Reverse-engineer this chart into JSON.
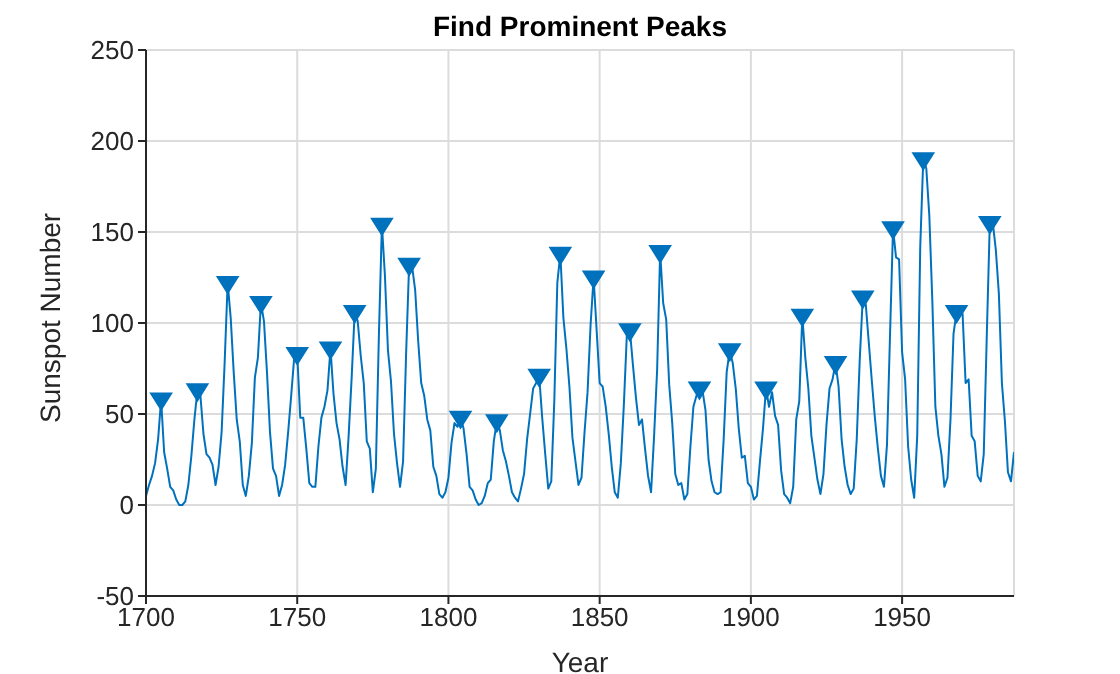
{
  "chart_data": {
    "type": "line",
    "title": "Find Prominent Peaks",
    "xlabel": "Year",
    "ylabel": "Sunspot Number",
    "x": [
      1700,
      1701,
      1702,
      1703,
      1704,
      1705,
      1706,
      1707,
      1708,
      1709,
      1710,
      1711,
      1712,
      1713,
      1714,
      1715,
      1716,
      1717,
      1718,
      1719,
      1720,
      1721,
      1722,
      1723,
      1724,
      1725,
      1726,
      1727,
      1728,
      1729,
      1730,
      1731,
      1732,
      1733,
      1734,
      1735,
      1736,
      1737,
      1738,
      1739,
      1740,
      1741,
      1742,
      1743,
      1744,
      1745,
      1746,
      1747,
      1748,
      1749,
      1750,
      1751,
      1752,
      1753,
      1754,
      1755,
      1756,
      1757,
      1758,
      1759,
      1760,
      1761,
      1762,
      1763,
      1764,
      1765,
      1766,
      1767,
      1768,
      1769,
      1770,
      1771,
      1772,
      1773,
      1774,
      1775,
      1776,
      1777,
      1778,
      1779,
      1780,
      1781,
      1782,
      1783,
      1784,
      1785,
      1786,
      1787,
      1788,
      1789,
      1790,
      1791,
      1792,
      1793,
      1794,
      1795,
      1796,
      1797,
      1798,
      1799,
      1800,
      1801,
      1802,
      1803,
      1804,
      1805,
      1806,
      1807,
      1808,
      1809,
      1810,
      1811,
      1812,
      1813,
      1814,
      1815,
      1816,
      1817,
      1818,
      1819,
      1820,
      1821,
      1822,
      1823,
      1824,
      1825,
      1826,
      1827,
      1828,
      1829,
      1830,
      1831,
      1832,
      1833,
      1834,
      1835,
      1836,
      1837,
      1838,
      1839,
      1840,
      1841,
      1842,
      1843,
      1844,
      1845,
      1846,
      1847,
      1848,
      1849,
      1850,
      1851,
      1852,
      1853,
      1854,
      1855,
      1856,
      1857,
      1858,
      1859,
      1860,
      1861,
      1862,
      1863,
      1864,
      1865,
      1866,
      1867,
      1868,
      1869,
      1870,
      1871,
      1872,
      1873,
      1874,
      1875,
      1876,
      1877,
      1878,
      1879,
      1880,
      1881,
      1882,
      1883,
      1884,
      1885,
      1886,
      1887,
      1888,
      1889,
      1890,
      1891,
      1892,
      1893,
      1894,
      1895,
      1896,
      1897,
      1898,
      1899,
      1900,
      1901,
      1902,
      1903,
      1904,
      1905,
      1906,
      1907,
      1908,
      1909,
      1910,
      1911,
      1912,
      1913,
      1914,
      1915,
      1916,
      1917,
      1918,
      1919,
      1920,
      1921,
      1922,
      1923,
      1924,
      1925,
      1926,
      1927,
      1928,
      1929,
      1930,
      1931,
      1932,
      1933,
      1934,
      1935,
      1936,
      1937,
      1938,
      1939,
      1940,
      1941,
      1942,
      1943,
      1944,
      1945,
      1946,
      1947,
      1948,
      1949,
      1950,
      1951,
      1952,
      1953,
      1954,
      1955,
      1956,
      1957,
      1958,
      1959,
      1960,
      1961,
      1962,
      1963,
      1964,
      1965,
      1966,
      1967,
      1968,
      1969,
      1970,
      1971,
      1972,
      1973,
      1974,
      1975,
      1976,
      1977,
      1978,
      1979,
      1980,
      1981,
      1982,
      1983,
      1984,
      1985,
      1986,
      1987
    ],
    "series": [
      {
        "color": "#0072bd",
        "values": [
          5,
          11,
          16,
          23,
          36,
          58,
          29,
          20,
          10,
          8,
          3,
          0,
          0,
          2,
          11,
          27,
          47,
          63,
          60,
          39,
          28,
          26,
          22,
          11,
          21,
          40,
          78,
          122,
          103,
          73,
          47,
          35,
          11,
          5,
          16,
          34,
          70,
          81,
          111,
          101,
          73,
          40,
          20,
          16,
          5,
          11,
          22,
          40,
          60,
          81,
          83,
          48,
          48,
          31,
          12,
          10,
          10,
          32,
          48,
          54,
          63,
          86,
          61,
          45,
          36,
          21,
          11,
          38,
          70,
          106,
          101,
          82,
          67,
          35,
          31,
          7,
          20,
          93,
          154,
          126,
          85,
          68,
          39,
          23,
          10,
          24,
          83,
          132,
          131,
          118,
          90,
          67,
          60,
          47,
          41,
          21,
          16,
          6,
          4,
          7,
          15,
          34,
          45,
          43,
          48,
          42,
          28,
          10,
          8,
          3,
          0,
          1,
          5,
          12,
          14,
          35,
          46,
          41,
          30,
          24,
          16,
          7,
          4,
          2,
          9,
          17,
          36,
          50,
          64,
          67,
          71,
          48,
          28,
          9,
          13,
          57,
          122,
          138,
          103,
          86,
          65,
          37,
          24,
          11,
          15,
          40,
          62,
          99,
          125,
          96,
          67,
          65,
          54,
          39,
          21,
          7,
          4,
          23,
          55,
          94,
          96,
          77,
          59,
          44,
          47,
          31,
          16,
          7,
          38,
          74,
          139,
          111,
          102,
          66,
          45,
          17,
          11,
          12,
          3,
          6,
          32,
          54,
          60,
          64,
          63,
          52,
          25,
          13,
          7,
          6,
          7,
          36,
          73,
          85,
          78,
          64,
          42,
          26,
          27,
          12,
          10,
          3,
          5,
          24,
          42,
          64,
          54,
          62,
          49,
          44,
          19,
          6,
          4,
          1,
          10,
          47,
          57,
          104,
          81,
          64,
          38,
          26,
          14,
          6,
          17,
          44,
          64,
          69,
          78,
          65,
          36,
          21,
          11,
          6,
          9,
          36,
          80,
          114,
          110,
          89,
          68,
          48,
          31,
          16,
          10,
          33,
          93,
          152,
          136,
          135,
          84,
          69,
          32,
          14,
          4,
          38,
          142,
          190,
          185,
          159,
          112,
          54,
          38,
          28,
          10,
          15,
          47,
          94,
          106,
          106,
          105,
          67,
          69,
          38,
          35,
          16,
          13,
          28,
          93,
          155,
          155,
          140,
          116,
          67,
          46,
          18,
          13,
          29
        ]
      },
      {
        "type": "scatter",
        "color": "#0072bd",
        "marker": "triangle",
        "x": [
          1705,
          1717,
          1727,
          1738,
          1750,
          1761,
          1769,
          1778,
          1787,
          1804,
          1816,
          1830,
          1837,
          1848,
          1860,
          1870,
          1883,
          1893,
          1905,
          1917,
          1928,
          1937,
          1947,
          1957,
          1968,
          1979
        ],
        "values": [
          58,
          63,
          122,
          111,
          83,
          86,
          106,
          154,
          132,
          48,
          46,
          71,
          138,
          125,
          96,
          139,
          64,
          85,
          64,
          104,
          78,
          114,
          152,
          190,
          106,
          155
        ]
      }
    ],
    "xlim": [
      1700,
      1987
    ],
    "xticks": [
      1700,
      1750,
      1800,
      1850,
      1900,
      1950
    ],
    "ylim": [
      -50,
      250
    ],
    "yticks": [
      -50,
      0,
      50,
      100,
      150,
      200,
      250
    ],
    "grid": true
  }
}
